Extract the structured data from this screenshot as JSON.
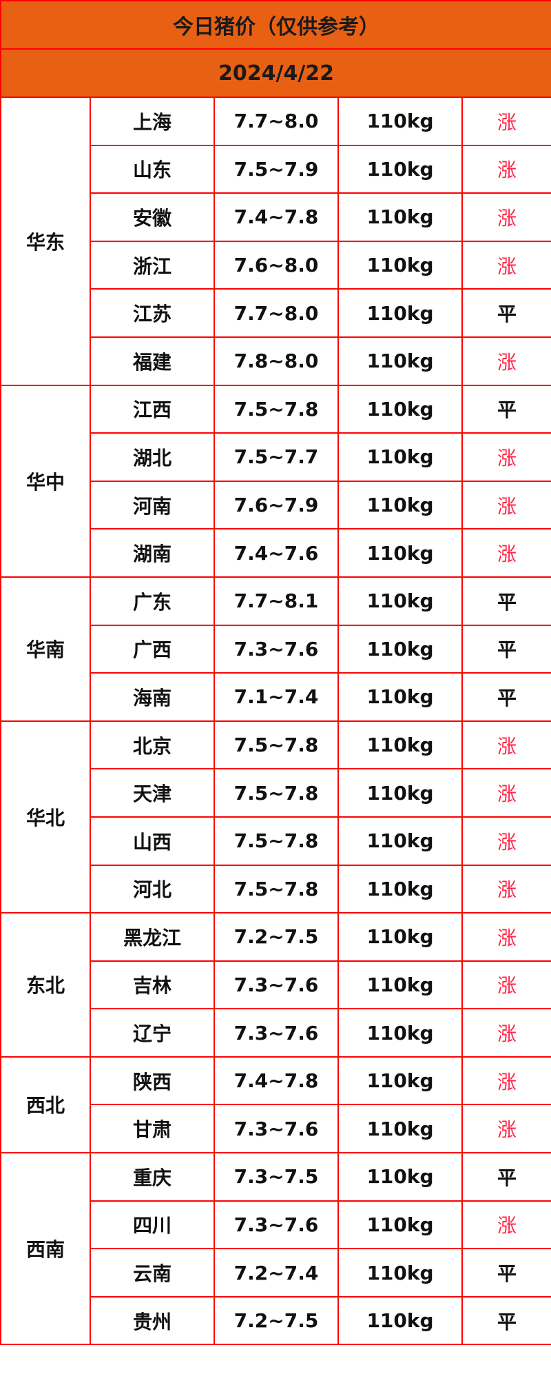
{
  "title": "今日猪价（仅供参考）",
  "date": "2024/4/22",
  "colors": {
    "header_bg": "#e86013",
    "border": "#ff0000",
    "up": "#ff2a4a",
    "flat": "#111111"
  },
  "groups": [
    {
      "region": "华东",
      "rows": [
        {
          "province": "上海",
          "price": "7.7~8.0",
          "weight": "110kg",
          "trend": "涨"
        },
        {
          "province": "山东",
          "price": "7.5~7.9",
          "weight": "110kg",
          "trend": "涨"
        },
        {
          "province": "安徽",
          "price": "7.4~7.8",
          "weight": "110kg",
          "trend": "涨"
        },
        {
          "province": "浙江",
          "price": "7.6~8.0",
          "weight": "110kg",
          "trend": "涨"
        },
        {
          "province": "江苏",
          "price": "7.7~8.0",
          "weight": "110kg",
          "trend": "平"
        },
        {
          "province": "福建",
          "price": "7.8~8.0",
          "weight": "110kg",
          "trend": "涨"
        }
      ]
    },
    {
      "region": "华中",
      "rows": [
        {
          "province": "江西",
          "price": "7.5~7.8",
          "weight": "110kg",
          "trend": "平"
        },
        {
          "province": "湖北",
          "price": "7.5~7.7",
          "weight": "110kg",
          "trend": "涨"
        },
        {
          "province": "河南",
          "price": "7.6~7.9",
          "weight": "110kg",
          "trend": "涨"
        },
        {
          "province": "湖南",
          "price": "7.4~7.6",
          "weight": "110kg",
          "trend": "涨"
        }
      ]
    },
    {
      "region": "华南",
      "rows": [
        {
          "province": "广东",
          "price": "7.7~8.1",
          "weight": "110kg",
          "trend": "平"
        },
        {
          "province": "广西",
          "price": "7.3~7.6",
          "weight": "110kg",
          "trend": "平"
        },
        {
          "province": "海南",
          "price": "7.1~7.4",
          "weight": "110kg",
          "trend": "平"
        }
      ]
    },
    {
      "region": "华北",
      "rows": [
        {
          "province": "北京",
          "price": "7.5~7.8",
          "weight": "110kg",
          "trend": "涨"
        },
        {
          "province": "天津",
          "price": "7.5~7.8",
          "weight": "110kg",
          "trend": "涨"
        },
        {
          "province": "山西",
          "price": "7.5~7.8",
          "weight": "110kg",
          "trend": "涨"
        },
        {
          "province": "河北",
          "price": "7.5~7.8",
          "weight": "110kg",
          "trend": "涨"
        }
      ]
    },
    {
      "region": "东北",
      "rows": [
        {
          "province": "黑龙江",
          "price": "7.2~7.5",
          "weight": "110kg",
          "trend": "涨"
        },
        {
          "province": "吉林",
          "price": "7.3~7.6",
          "weight": "110kg",
          "trend": "涨"
        },
        {
          "province": "辽宁",
          "price": "7.3~7.6",
          "weight": "110kg",
          "trend": "涨"
        }
      ]
    },
    {
      "region": "西北",
      "rows": [
        {
          "province": "陕西",
          "price": "7.4~7.8",
          "weight": "110kg",
          "trend": "涨"
        },
        {
          "province": "甘肃",
          "price": "7.3~7.6",
          "weight": "110kg",
          "trend": "涨"
        }
      ]
    },
    {
      "region": "西南",
      "rows": [
        {
          "province": "重庆",
          "price": "7.3~7.5",
          "weight": "110kg",
          "trend": "平"
        },
        {
          "province": "四川",
          "price": "7.3~7.6",
          "weight": "110kg",
          "trend": "涨"
        },
        {
          "province": "云南",
          "price": "7.2~7.4",
          "weight": "110kg",
          "trend": "平"
        },
        {
          "province": "贵州",
          "price": "7.2~7.5",
          "weight": "110kg",
          "trend": "平"
        }
      ]
    }
  ]
}
